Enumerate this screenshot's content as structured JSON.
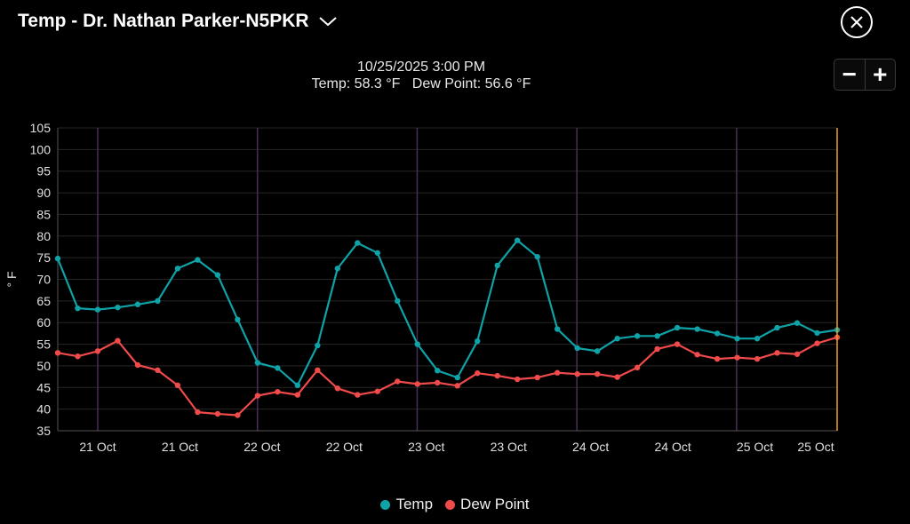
{
  "header": {
    "title": "Temp - Dr. Nathan Parker-N5PKR"
  },
  "icons": {
    "dropdown": "chevron-down-icon",
    "close": "close-circle-icon"
  },
  "readout": {
    "datetime": "10/25/2025 3:00 PM",
    "values": "Temp: 58.3 °F   Dew Point: 56.6 °F"
  },
  "zoom": {
    "out_label": "−",
    "in_label": "+"
  },
  "colors": {
    "temp": "#0fa3a8",
    "dew": "#f04a4a",
    "cursor": "#f0a020",
    "day_line": "#4a2e56",
    "grid": "#262626"
  },
  "chart_data": {
    "type": "line",
    "ylabel": "° F",
    "ylim": [
      35,
      105
    ],
    "yticks": [
      35,
      40,
      45,
      50,
      55,
      60,
      65,
      70,
      75,
      80,
      85,
      90,
      95,
      100,
      105
    ],
    "xlabels": [
      "21 Oct",
      "21 Oct",
      "22 Oct",
      "22 Oct",
      "23 Oct",
      "23 Oct",
      "24 Oct",
      "24 Oct",
      "25 Oct",
      "25 Oct"
    ],
    "legend_position": "bottom",
    "series": [
      {
        "name": "Temp",
        "values": [
          74.8,
          63.3,
          63.0,
          63.5,
          64.2,
          65.0,
          72.5,
          74.5,
          71.0,
          60.7,
          50.7,
          49.5,
          45.5,
          54.7,
          72.5,
          78.4,
          76.1,
          65.0,
          55.0,
          48.9,
          47.3,
          55.7,
          73.2,
          79.0,
          75.2,
          58.5,
          54.1,
          53.4,
          56.3,
          56.9,
          56.9,
          58.8,
          58.5,
          57.5,
          56.3,
          56.3,
          58.8,
          59.9,
          57.6,
          58.3
        ]
      },
      {
        "name": "Dew Point",
        "values": [
          53.0,
          52.2,
          53.4,
          55.8,
          50.2,
          49.0,
          45.5,
          39.3,
          38.9,
          38.6,
          43.1,
          44.0,
          43.3,
          49.0,
          44.8,
          43.3,
          44.1,
          46.4,
          45.8,
          46.1,
          45.4,
          48.3,
          47.7,
          46.9,
          47.3,
          48.4,
          48.1,
          48.1,
          47.4,
          49.6,
          53.9,
          55.0,
          52.6,
          51.6,
          51.9,
          51.6,
          53.0,
          52.7,
          55.2,
          56.6
        ]
      }
    ]
  },
  "legend": {
    "items": [
      {
        "label": "Temp"
      },
      {
        "label": "Dew Point"
      }
    ]
  }
}
